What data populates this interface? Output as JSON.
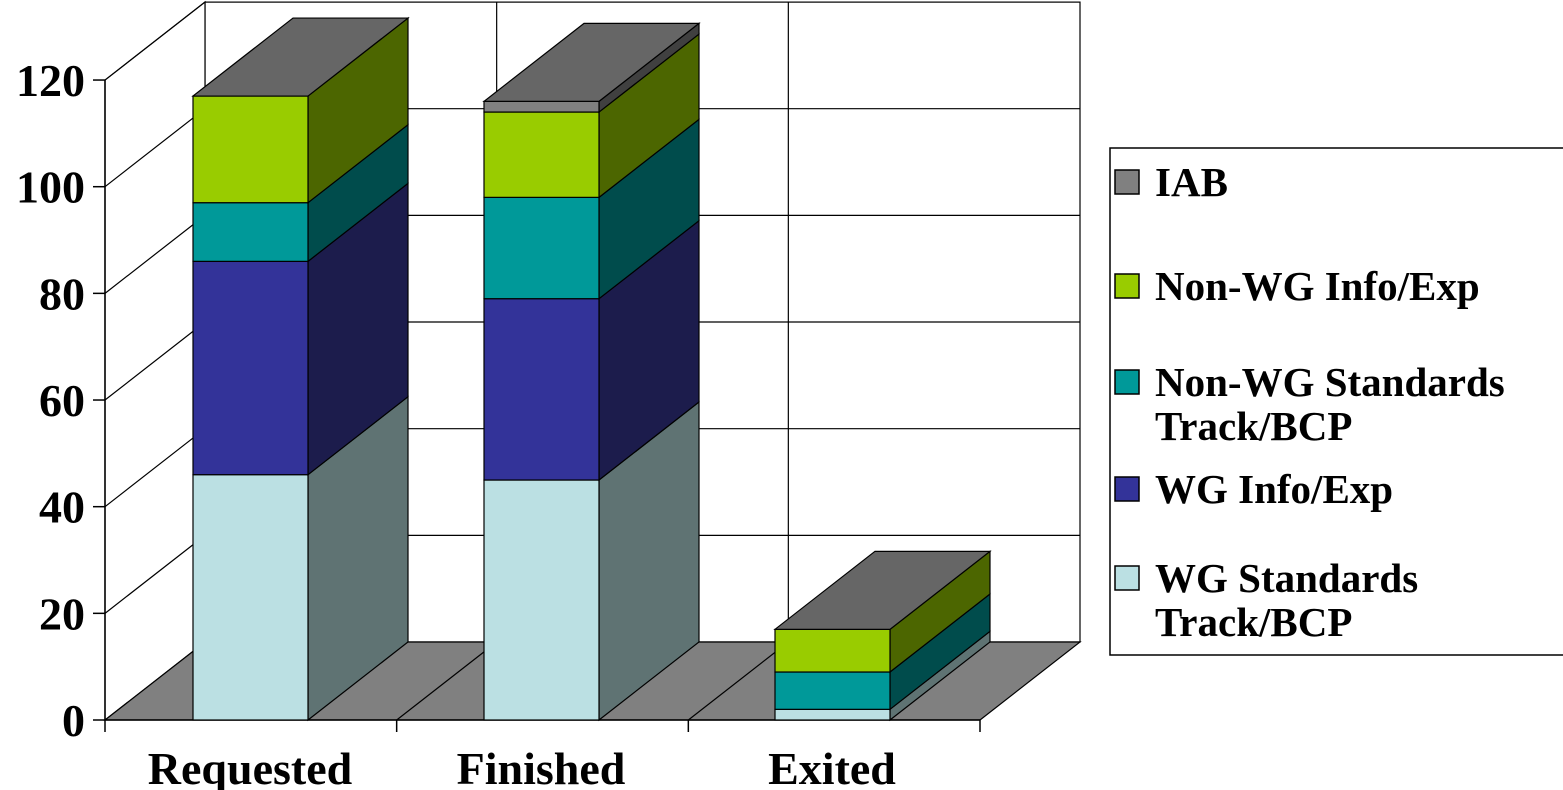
{
  "chart_data": {
    "type": "bar",
    "stacked": true,
    "three_d": true,
    "title": "",
    "xlabel": "",
    "ylabel": "",
    "categories": [
      "Requested",
      "Finished",
      "Exited"
    ],
    "ylim": [
      0,
      120
    ],
    "yticks": [
      0,
      20,
      40,
      60,
      80,
      100,
      120
    ],
    "grid": true,
    "legend_position": "right",
    "series": [
      {
        "name": "WG Standards Track/BCP",
        "legend_lines": [
          "WG Standards",
          "Track/BCP"
        ],
        "color": "#bbe0e3",
        "side_color": "#5f7373",
        "values": [
          46,
          45,
          2
        ]
      },
      {
        "name": "WG Info/Exp",
        "legend_lines": [
          "WG Info/Exp"
        ],
        "color": "#333399",
        "side_color": "#1c1c4c",
        "values": [
          40,
          34,
          0
        ]
      },
      {
        "name": "Non-WG Standards Track/BCP",
        "legend_lines": [
          "Non-WG Standards",
          "Track/BCP"
        ],
        "color": "#009999",
        "side_color": "#004c4c",
        "values": [
          11,
          19,
          7
        ]
      },
      {
        "name": "Non-WG Info/Exp",
        "legend_lines": [
          "Non-WG Info/Exp"
        ],
        "color": "#99cc00",
        "side_color": "#4c6600",
        "values": [
          20,
          16,
          8
        ]
      },
      {
        "name": "IAB",
        "legend_lines": [
          "IAB"
        ],
        "color": "#808080",
        "side_color": "#404040",
        "values": [
          0,
          2,
          0
        ]
      }
    ],
    "colors": {
      "wall": "#ffffff",
      "floor": "#808080",
      "top_face": "#666666",
      "gridline": "#000000"
    }
  }
}
